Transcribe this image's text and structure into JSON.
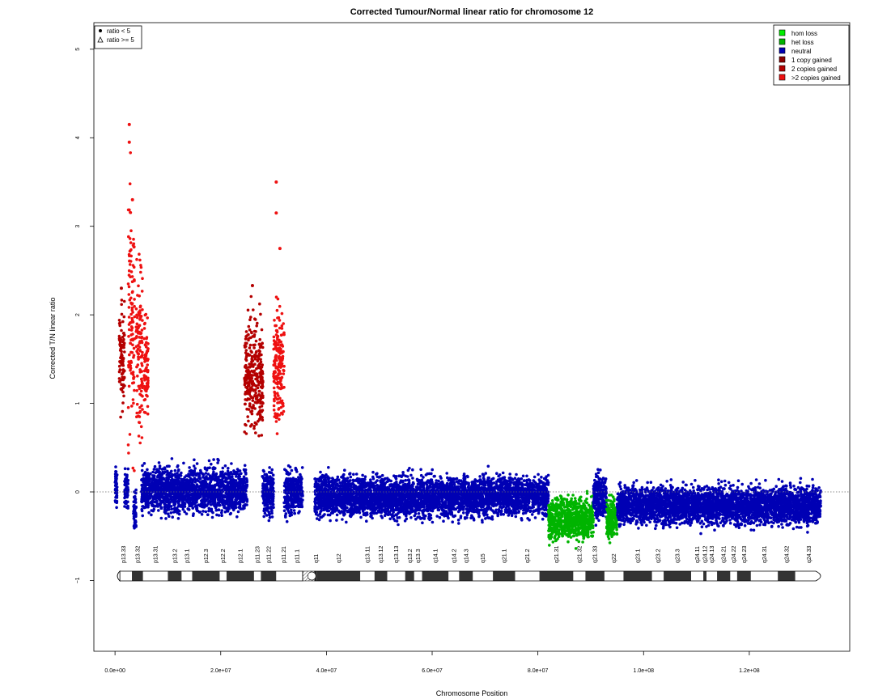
{
  "chart_data": {
    "type": "scatter",
    "title": "Corrected Tumour/Normal linear ratio for chromosome  12",
    "xlabel": "Chromosome Position",
    "ylabel": "Corrected T/N linear ratio",
    "xlim": [
      -4000000,
      139000000
    ],
    "ylim": [
      -1.8,
      5.3
    ],
    "x_ticks": [
      {
        "value": 0,
        "label": "0.0e+00"
      },
      {
        "value": 20000000,
        "label": "2.0e+07"
      },
      {
        "value": 40000000,
        "label": "4.0e+07"
      },
      {
        "value": 60000000,
        "label": "6.0e+07"
      },
      {
        "value": 80000000,
        "label": "8.0e+07"
      },
      {
        "value": 100000000,
        "label": "1.0e+08"
      },
      {
        "value": 120000000,
        "label": "1.2e+08"
      }
    ],
    "y_ticks": [
      {
        "value": -1,
        "label": "−1"
      },
      {
        "value": 0,
        "label": "0"
      },
      {
        "value": 1,
        "label": "1"
      },
      {
        "value": 2,
        "label": "2"
      },
      {
        "value": 3,
        "label": "3"
      },
      {
        "value": 4,
        "label": "4"
      },
      {
        "value": 5,
        "label": "5"
      }
    ],
    "reference_line_y": 0,
    "shape_legend": {
      "placement": "top-left",
      "items": [
        {
          "symbol": "dot",
          "label": "ratio < 5"
        },
        {
          "symbol": "triangle",
          "label": "ratio >= 5"
        }
      ]
    },
    "legend": {
      "placement": "top-right",
      "items": [
        {
          "label": "hom loss",
          "color": "#00ee00"
        },
        {
          "label": "het loss",
          "color": "#00b400"
        },
        {
          "label": "neutral",
          "color": "#0000b4"
        },
        {
          "label": "1 copy gained",
          "color": "#8b0000"
        },
        {
          "label": "2 copies gained",
          "color": "#b40000"
        },
        {
          "label": ">2 copies gained",
          "color": "#ee1111"
        }
      ]
    },
    "segments": [
      {
        "start": 0,
        "end": 400000,
        "mean": 0.05,
        "spread": 0.5,
        "color": "#0000b4"
      },
      {
        "start": 800000,
        "end": 1800000,
        "mean": 1.5,
        "spread": 1.4,
        "color": "#b40000"
      },
      {
        "start": 1800000,
        "end": 2500000,
        "mean": 0.05,
        "spread": 0.5,
        "color": "#0000b4"
      },
      {
        "start": 2500000,
        "end": 3700000,
        "mean": 2.0,
        "spread": 3.4,
        "color": "#ee1111"
      },
      {
        "start": 3500000,
        "end": 4000000,
        "mean": -0.2,
        "spread": 0.6,
        "color": "#0000b4"
      },
      {
        "start": 4000000,
        "end": 5200000,
        "mean": 1.6,
        "spread": 2.4,
        "color": "#ee1111"
      },
      {
        "start": 5500000,
        "end": 6300000,
        "mean": 1.3,
        "spread": 1.4,
        "color": "#ee1111"
      },
      {
        "start": 5000000,
        "end": 25000000,
        "mean": 0.02,
        "spread": 0.6,
        "color": "#0000b4"
      },
      {
        "start": 24500000,
        "end": 28000000,
        "mean": 1.3,
        "spread": 1.5,
        "color": "#b40000"
      },
      {
        "start": 27800000,
        "end": 30000000,
        "mean": 0.0,
        "spread": 0.6,
        "color": "#0000b4"
      },
      {
        "start": 30000000,
        "end": 32000000,
        "mean": 1.4,
        "spread": 1.6,
        "color": "#ee1111"
      },
      {
        "start": 32000000,
        "end": 35500000,
        "mean": 0.0,
        "spread": 0.6,
        "color": "#0000b4"
      },
      {
        "start": 37800000,
        "end": 82000000,
        "mean": -0.05,
        "spread": 0.55,
        "color": "#0000b4"
      },
      {
        "start": 82000000,
        "end": 90500000,
        "mean": -0.3,
        "spread": 0.55,
        "color": "#00b400"
      },
      {
        "start": 90500000,
        "end": 93000000,
        "mean": -0.05,
        "spread": 0.6,
        "color": "#0000b4"
      },
      {
        "start": 93000000,
        "end": 95000000,
        "mean": -0.3,
        "spread": 0.55,
        "color": "#00b400"
      },
      {
        "start": 95000000,
        "end": 133500000,
        "mean": -0.15,
        "spread": 0.5,
        "color": "#0000b4"
      }
    ],
    "outliers": [
      {
        "x": 2700000,
        "y": 4.15,
        "color": "#ee1111"
      },
      {
        "x": 2700000,
        "y": 3.95,
        "color": "#ee1111"
      },
      {
        "x": 3300000,
        "y": 3.3,
        "color": "#ee1111"
      },
      {
        "x": 30500000,
        "y": 3.5,
        "color": "#ee1111"
      },
      {
        "x": 30500000,
        "y": 3.15,
        "color": "#ee1111"
      },
      {
        "x": 31200000,
        "y": 2.75,
        "color": "#ee1111"
      },
      {
        "x": 26000000,
        "y": 2.33,
        "color": "#b40000"
      },
      {
        "x": 1200000,
        "y": 2.3,
        "color": "#b40000"
      }
    ],
    "ideogram": {
      "y": -0.95,
      "centromere": [
        35500000,
        37800000
      ],
      "bands": [
        {
          "name": "p13.33",
          "start": 0,
          "end": 3200000,
          "stain": "white"
        },
        {
          "name": "p13.32",
          "start": 3200000,
          "end": 5300000,
          "stain": "dark"
        },
        {
          "name": "p13.31",
          "start": 5300000,
          "end": 10000000,
          "stain": "white"
        },
        {
          "name": "p13.2",
          "start": 10000000,
          "end": 12600000,
          "stain": "dark"
        },
        {
          "name": "p13.1",
          "start": 12600000,
          "end": 14600000,
          "stain": "white"
        },
        {
          "name": "p12.3",
          "start": 14600000,
          "end": 19800000,
          "stain": "dark"
        },
        {
          "name": "p12.2",
          "start": 19800000,
          "end": 21100000,
          "stain": "white"
        },
        {
          "name": "p12.1",
          "start": 21100000,
          "end": 26300000,
          "stain": "dark"
        },
        {
          "name": "p11.23",
          "start": 26300000,
          "end": 27600000,
          "stain": "white"
        },
        {
          "name": "p11.22",
          "start": 27600000,
          "end": 30500000,
          "stain": "dark"
        },
        {
          "name": "p11.21",
          "start": 30500000,
          "end": 33300000,
          "stain": "white"
        },
        {
          "name": "p11.1",
          "start": 33300000,
          "end": 35500000,
          "stain": "white"
        },
        {
          "name": "q11",
          "start": 37800000,
          "end": 38200000,
          "stain": "dark"
        },
        {
          "name": "q12",
          "start": 38200000,
          "end": 46400000,
          "stain": "dark"
        },
        {
          "name": "q13.11",
          "start": 46400000,
          "end": 49100000,
          "stain": "white"
        },
        {
          "name": "q13.12",
          "start": 49100000,
          "end": 51500000,
          "stain": "dark"
        },
        {
          "name": "q13.13",
          "start": 51500000,
          "end": 54900000,
          "stain": "white"
        },
        {
          "name": "q13.2",
          "start": 54900000,
          "end": 56600000,
          "stain": "dark"
        },
        {
          "name": "q13.3",
          "start": 56600000,
          "end": 58100000,
          "stain": "white"
        },
        {
          "name": "q14.1",
          "start": 58100000,
          "end": 63100000,
          "stain": "dark"
        },
        {
          "name": "q14.2",
          "start": 63100000,
          "end": 65100000,
          "stain": "white"
        },
        {
          "name": "q14.3",
          "start": 65100000,
          "end": 67700000,
          "stain": "dark"
        },
        {
          "name": "q15",
          "start": 67700000,
          "end": 71500000,
          "stain": "white"
        },
        {
          "name": "q21.1",
          "start": 71500000,
          "end": 75700000,
          "stain": "dark"
        },
        {
          "name": "q21.2",
          "start": 75700000,
          "end": 80300000,
          "stain": "white"
        },
        {
          "name": "q21.31",
          "start": 80300000,
          "end": 86700000,
          "stain": "dark"
        },
        {
          "name": "q21.32",
          "start": 86700000,
          "end": 89000000,
          "stain": "white"
        },
        {
          "name": "q21.33",
          "start": 89000000,
          "end": 92600000,
          "stain": "dark"
        },
        {
          "name": "q22",
          "start": 92600000,
          "end": 96200000,
          "stain": "white"
        },
        {
          "name": "q23.1",
          "start": 96200000,
          "end": 101600000,
          "stain": "dark"
        },
        {
          "name": "q23.2",
          "start": 101600000,
          "end": 103800000,
          "stain": "white"
        },
        {
          "name": "q23.3",
          "start": 103800000,
          "end": 109000000,
          "stain": "dark"
        },
        {
          "name": "q24.11",
          "start": 109000000,
          "end": 111300000,
          "stain": "white"
        },
        {
          "name": "q24.12",
          "start": 111300000,
          "end": 111900000,
          "stain": "dark"
        },
        {
          "name": "q24.13",
          "start": 111900000,
          "end": 113900000,
          "stain": "white"
        },
        {
          "name": "q24.21",
          "start": 113900000,
          "end": 116400000,
          "stain": "dark"
        },
        {
          "name": "q24.22",
          "start": 116400000,
          "end": 117700000,
          "stain": "white"
        },
        {
          "name": "q24.23",
          "start": 117700000,
          "end": 120300000,
          "stain": "dark"
        },
        {
          "name": "q24.31",
          "start": 120300000,
          "end": 125400000,
          "stain": "white"
        },
        {
          "name": "q24.32",
          "start": 125400000,
          "end": 128700000,
          "stain": "dark"
        },
        {
          "name": "q24.33",
          "start": 128700000,
          "end": 133800000,
          "stain": "white"
        }
      ]
    }
  }
}
